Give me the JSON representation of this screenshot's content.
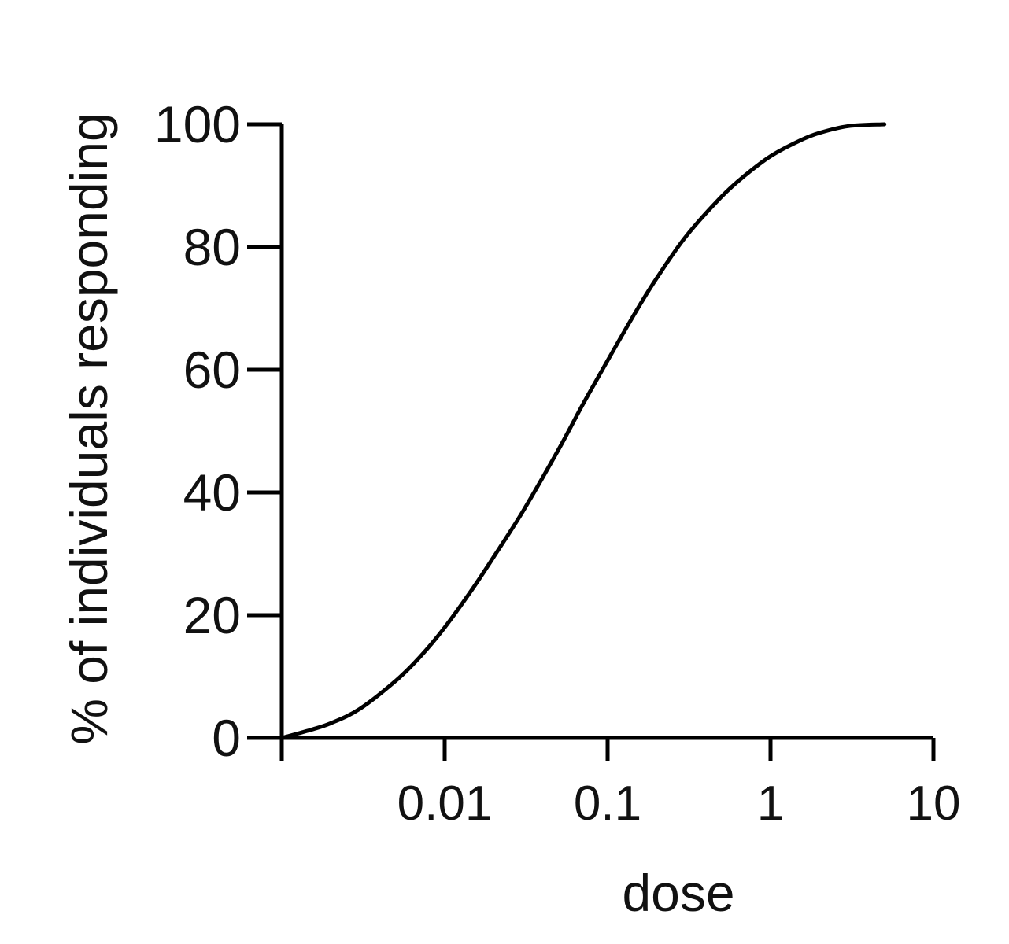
{
  "chart_data": {
    "type": "line",
    "title": "",
    "xlabel": "dose",
    "ylabel": "% of individuals responding",
    "x_scale": "log",
    "xlim": [
      0.001,
      10
    ],
    "ylim": [
      0,
      100
    ],
    "x_ticks": [
      0.001,
      0.01,
      0.1,
      1,
      10
    ],
    "x_tick_labels": [
      "",
      "0.01",
      "0.1",
      "1",
      "10"
    ],
    "y_ticks": [
      0,
      20,
      40,
      60,
      80,
      100
    ],
    "y_tick_labels": [
      "0",
      "20",
      "40",
      "60",
      "80",
      "100"
    ],
    "grid": false,
    "legend": "none",
    "colors": {
      "line": "#000000",
      "axis": "#000000",
      "text": "#111111"
    },
    "series": [
      {
        "x": [
          0.001,
          0.0015,
          0.002,
          0.003,
          0.005,
          0.007,
          0.01,
          0.015,
          0.02,
          0.03,
          0.05,
          0.07,
          0.1,
          0.15,
          0.2,
          0.3,
          0.5,
          0.7,
          1,
          1.5,
          2,
          3,
          5
        ],
        "y": [
          0,
          1.3,
          2.4,
          4.7,
          9.3,
          13.1,
          18,
          24.5,
          29.5,
          36.8,
          47,
          54.2,
          61.5,
          69.6,
          74.9,
          81.6,
          88.2,
          91.7,
          94.8,
          97.3,
          98.6,
          99.7,
          100
        ]
      }
    ]
  }
}
